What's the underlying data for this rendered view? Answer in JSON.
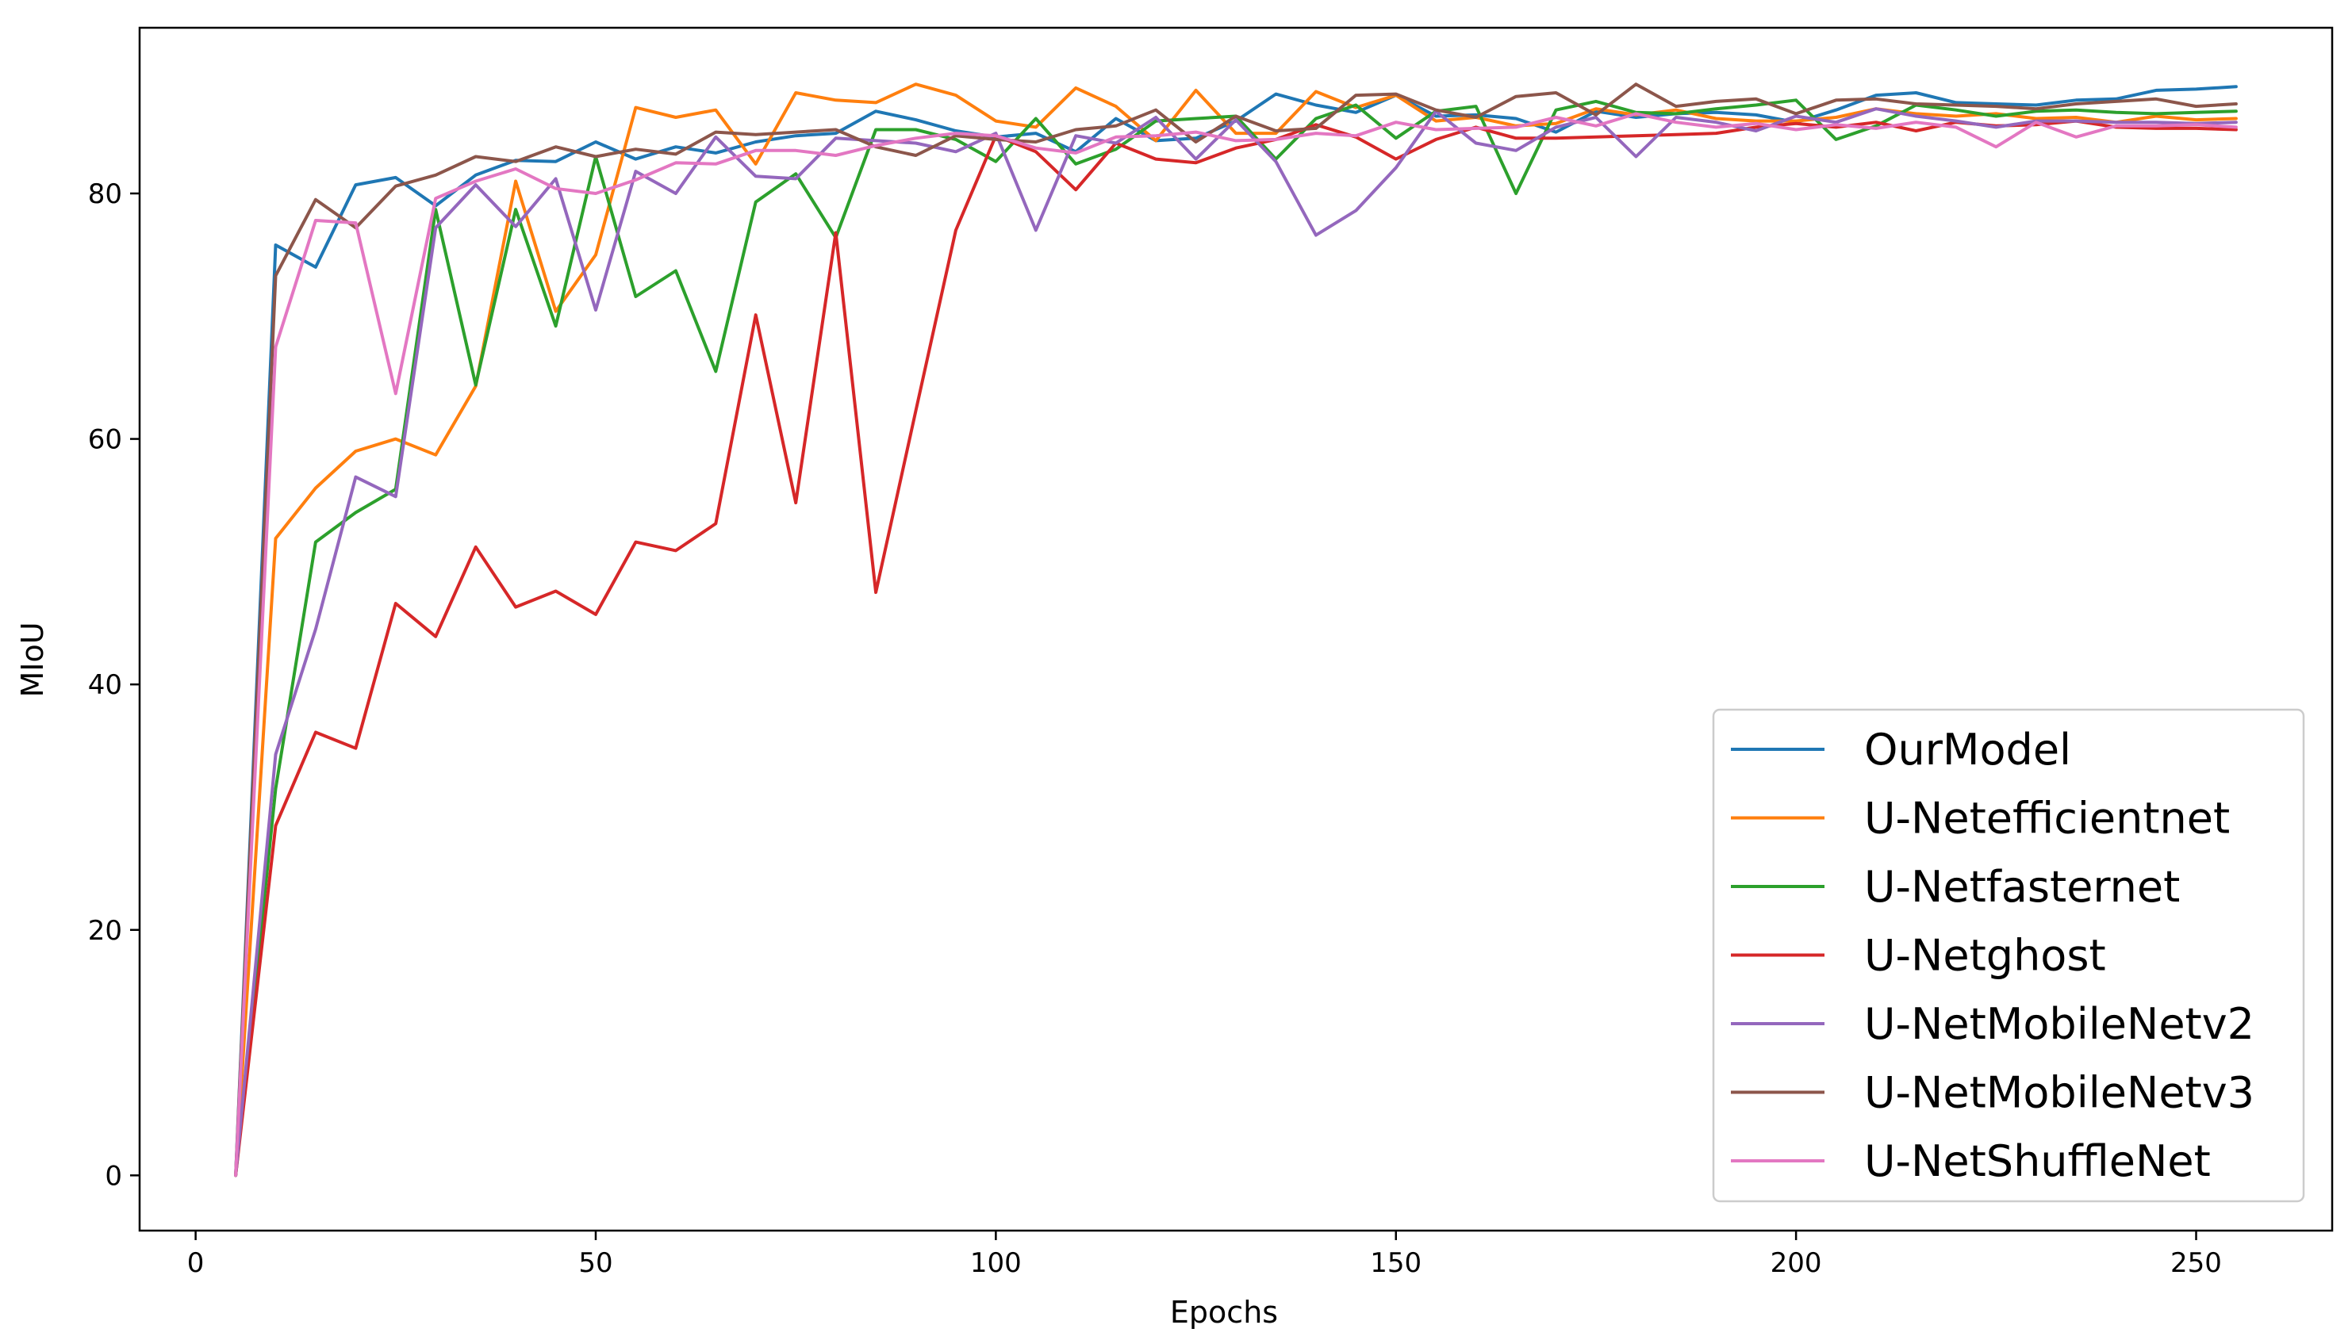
{
  "chart_data": {
    "type": "line",
    "title": "",
    "xlabel": "Epochs",
    "ylabel": "MIoU",
    "xlim": [
      -7,
      267
    ],
    "ylim": [
      -4.5,
      93.5
    ],
    "xticks": [
      0,
      50,
      100,
      150,
      200,
      250
    ],
    "yticks": [
      0,
      20,
      40,
      60,
      80
    ],
    "grid": false,
    "legend_position": "lower-right",
    "x": [
      5,
      10,
      15,
      20,
      25,
      30,
      35,
      40,
      45,
      50,
      55,
      60,
      65,
      70,
      75,
      80,
      85,
      90,
      95,
      100,
      105,
      110,
      115,
      120,
      125,
      130,
      135,
      140,
      145,
      150,
      155,
      160,
      165,
      170,
      175,
      180,
      185,
      190,
      195,
      200,
      205,
      210,
      215,
      220,
      225,
      230,
      235,
      240,
      245,
      250,
      255
    ],
    "series": [
      {
        "name": "OurModel",
        "color": "#1f77b4",
        "values": [
          0,
          75.8,
          74,
          80.7,
          81.3,
          79,
          81.5,
          82.7,
          82.6,
          84.2,
          82.8,
          83.8,
          83.3,
          84.2,
          84.7,
          84.9,
          86.7,
          86,
          85.1,
          84.6,
          84.9,
          83.4,
          86.1,
          84.3,
          84.5,
          85.9,
          88.1,
          87.2,
          86.6,
          88,
          86.3,
          86.4,
          86.1,
          85,
          86.7,
          86.2,
          86.5,
          86.6,
          86.4,
          85.8,
          86.8,
          88,
          88.2,
          87.4,
          87.3,
          87.2,
          87.6,
          87.7,
          88.4,
          88.5,
          88.7
        ]
      },
      {
        "name": "U-Netefficientnet",
        "color": "#ff7f0e",
        "values": [
          0,
          51.9,
          56,
          59,
          60,
          58.7,
          64.3,
          81,
          70.4,
          75,
          87,
          86.2,
          86.8,
          82.4,
          88.2,
          87.6,
          87.4,
          88.9,
          88,
          85.9,
          85.4,
          88.6,
          87.1,
          84.3,
          88.4,
          84.9,
          84.9,
          88.3,
          87,
          88,
          85.9,
          86.2,
          85.5,
          85.7,
          86.9,
          86.4,
          86.8,
          86.1,
          85.9,
          85.9,
          86.2,
          86.9,
          86.5,
          86.3,
          86.5,
          86.1,
          86.2,
          85.8,
          86.3,
          86,
          86.1
        ]
      },
      {
        "name": "U-Netfasternet",
        "color": "#2ca02c",
        "values": [
          0,
          31.5,
          51.6,
          54,
          55.9,
          78.7,
          64.4,
          78.7,
          69.2,
          83,
          71.6,
          73.7,
          65.5,
          79.3,
          81.6,
          76.4,
          85.2,
          85.2,
          84.4,
          82.6,
          86.1,
          82.4,
          83.6,
          85.9,
          86.1,
          86.3,
          82.8,
          86.1,
          87.2,
          84.5,
          86.7,
          87.1,
          80,
          86.8,
          87.5,
          86.6,
          86.5,
          86.9,
          87.2,
          87.6,
          84.4,
          85.5,
          87.2,
          86.8,
          86.3,
          86.7,
          86.8,
          86.6,
          86.5,
          86.6,
          86.7
        ]
      },
      {
        "name": "U-Netghost",
        "color": "#d62728",
        "values": [
          0,
          28.5,
          36.1,
          34.8,
          46.6,
          43.9,
          51.2,
          46.3,
          47.6,
          45.7,
          51.6,
          50.9,
          53.1,
          70.1,
          54.8,
          76.8,
          47.5,
          62.3,
          77,
          84.7,
          83.4,
          80.3,
          84.1,
          82.8,
          82.5,
          83.7,
          84.4,
          85.6,
          84.6,
          82.8,
          84.4,
          85.4,
          84.5,
          84.5,
          84.6,
          84.7,
          84.8,
          84.9,
          85.4,
          85.7,
          85.4,
          85.8,
          85.1,
          85.8,
          85.5,
          85.6,
          85.9,
          85.4,
          85.3,
          85.3,
          85.2
        ]
      },
      {
        "name": "U-NetMobileNetv2",
        "color": "#9467bd",
        "values": [
          0,
          34.3,
          44.5,
          56.9,
          55.3,
          77.2,
          80.7,
          77.3,
          81.2,
          70.5,
          81.8,
          80,
          84.6,
          81.4,
          81.2,
          84.5,
          84.3,
          84.1,
          83.4,
          84.9,
          77,
          84.7,
          84.1,
          86.2,
          82.8,
          86,
          82.6,
          76.6,
          78.6,
          82.1,
          86.7,
          84.1,
          83.5,
          85.4,
          86.2,
          83,
          86.2,
          85.8,
          85.1,
          86.3,
          85.8,
          86.9,
          86.3,
          85.9,
          85.4,
          85.9,
          85.9,
          85.8,
          85.8,
          85.7,
          85.8
        ]
      },
      {
        "name": "U-NetMobileNetv3",
        "color": "#8c564b",
        "values": [
          0,
          73.3,
          79.5,
          77.2,
          80.6,
          81.5,
          83,
          82.6,
          83.8,
          83,
          83.6,
          83.2,
          85,
          84.8,
          85,
          85.2,
          83.8,
          83.1,
          84.7,
          84.4,
          84.2,
          85.2,
          85.5,
          86.8,
          84.2,
          86.3,
          85.1,
          85.3,
          88,
          88.1,
          86.8,
          86.2,
          87.9,
          88.2,
          86.4,
          88.9,
          87.1,
          87.5,
          87.7,
          86.5,
          87.6,
          87.7,
          87.3,
          87.2,
          87.1,
          86.9,
          87.3,
          87.5,
          87.7,
          87.1,
          87.3
        ]
      },
      {
        "name": "U-NetShuffleNet",
        "color": "#e377c2",
        "values": [
          0,
          67.5,
          77.8,
          77.6,
          63.7,
          79.6,
          81,
          82,
          80.4,
          80,
          81.1,
          82.5,
          82.4,
          83.5,
          83.5,
          83.1,
          83.9,
          84.5,
          84.9,
          84.7,
          83.7,
          83.3,
          84.6,
          84.7,
          85,
          84.3,
          84.4,
          84.9,
          84.7,
          85.8,
          85.2,
          85.3,
          85.4,
          86.2,
          85.5,
          86.5,
          85.8,
          85.4,
          85.7,
          85.2,
          85.6,
          85.3,
          85.8,
          85.4,
          83.8,
          85.8,
          84.6,
          85.5,
          85.5,
          85.6,
          85.4
        ]
      }
    ]
  }
}
